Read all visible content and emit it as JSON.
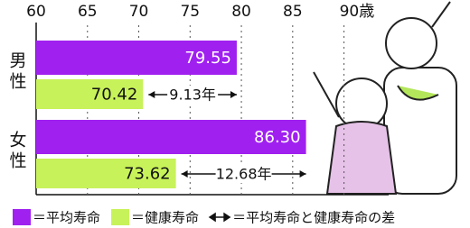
{
  "chart_data": {
    "type": "bar",
    "orientation": "horizontal",
    "categories": [
      "男性",
      "女性"
    ],
    "series": [
      {
        "name": "平均寿命",
        "color": "#a020f0",
        "values": [
          79.55,
          86.3
        ],
        "value_labels": [
          "79.55",
          "86.30"
        ]
      },
      {
        "name": "健康寿命",
        "color": "#c8f25a",
        "values": [
          70.42,
          73.62
        ]
      }
    ],
    "differences": [
      {
        "value": 9.13,
        "label": "9.13年"
      },
      {
        "value": 12.68,
        "label": "12.68年"
      }
    ],
    "legend_separator": "＝",
    "difference_legend": "＝平均寿命と健康寿命の差",
    "xlim": [
      60,
      94
    ],
    "xticks": [
      60,
      65,
      70,
      75,
      80,
      85,
      {
        "value": 90,
        "label": "90歳"
      }
    ],
    "grid": true
  }
}
